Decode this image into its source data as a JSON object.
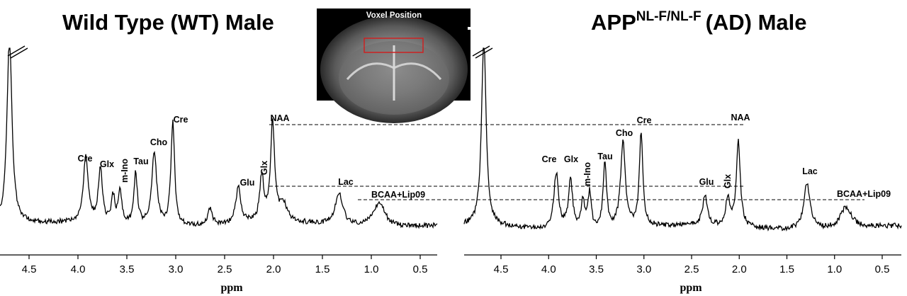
{
  "chart_data": [
    {
      "type": "line",
      "title": "Wild Type (WT) Male",
      "xlabel": "ppm",
      "xlim": [
        4.8,
        0.3
      ],
      "x_ticks": [
        "4.5",
        "4.0",
        "3.5",
        "3.0",
        "2.5",
        "2.0",
        "1.5",
        "1.0",
        "0.5"
      ],
      "peaks": [
        {
          "name": "Cre",
          "x": 3.92
        },
        {
          "name": "Glx",
          "x": 3.77
        },
        {
          "name": "m-Ino",
          "x": 3.57
        },
        {
          "name": "Tau",
          "x": 3.41
        },
        {
          "name": "Cho",
          "x": 3.22
        },
        {
          "name": "Cre",
          "x": 3.03
        },
        {
          "name": "Glu",
          "x": 2.36
        },
        {
          "name": "Glx",
          "x": 2.12
        },
        {
          "name": "NAA",
          "x": 2.01
        },
        {
          "name": "Lac",
          "x": 1.33
        },
        {
          "name": "BCAA+Lip09",
          "x": 0.92
        }
      ]
    },
    {
      "type": "line",
      "title": "APP",
      "title_superscript": "NL-F/NL-F",
      "title_suffix": "(AD) Male",
      "xlabel": "ppm",
      "xlim": [
        4.8,
        0.3
      ],
      "x_ticks": [
        "4.5",
        "4.0",
        "3.5",
        "3.0",
        "2.5",
        "2.0",
        "1.5",
        "1.0",
        "0.5"
      ],
      "peaks": [
        {
          "name": "Cre",
          "x": 3.92
        },
        {
          "name": "Glx",
          "x": 3.77
        },
        {
          "name": "m-Ino",
          "x": 3.57
        },
        {
          "name": "Tau",
          "x": 3.41
        },
        {
          "name": "Cho",
          "x": 3.22
        },
        {
          "name": "Cre",
          "x": 3.03
        },
        {
          "name": "Glu",
          "x": 2.36
        },
        {
          "name": "Glx",
          "x": 2.12
        },
        {
          "name": "NAA",
          "x": 2.01
        },
        {
          "name": "Lac",
          "x": 1.29
        },
        {
          "name": "BCAA+Lip09",
          "x": 0.9
        }
      ]
    }
  ],
  "inset": {
    "label": "Voxel Position"
  },
  "colors": {
    "line": "#000000",
    "voxel_box": "#cc2222"
  }
}
